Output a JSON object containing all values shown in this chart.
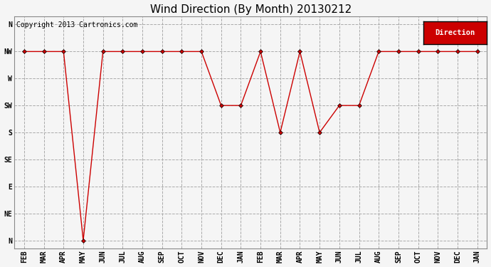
{
  "title": "Wind Direction (By Month) 20130212",
  "copyright": "Copyright 2013 Cartronics.com",
  "legend_label": "Direction",
  "legend_bg": "#cc0000",
  "legend_text_color": "#ffffff",
  "x_labels": [
    "FEB",
    "MAR",
    "APR",
    "MAY",
    "JUN",
    "JUL",
    "AUG",
    "SEP",
    "OCT",
    "NOV",
    "DEC",
    "JAN",
    "FEB",
    "MAR",
    "APR",
    "MAY",
    "JUN",
    "JUL",
    "AUG",
    "SEP",
    "OCT",
    "NOV",
    "DEC",
    "JAN"
  ],
  "y_labels": [
    "N",
    "NE",
    "E",
    "SE",
    "S",
    "SW",
    "W",
    "NW",
    "N"
  ],
  "y_ticks": [
    0,
    1,
    2,
    3,
    4,
    5,
    6,
    7,
    8
  ],
  "data_values": [
    7,
    7,
    7,
    0,
    7,
    7,
    7,
    7,
    7,
    7,
    5,
    5,
    7,
    4,
    7,
    4,
    5,
    5,
    7,
    7,
    7,
    7,
    7,
    7
  ],
  "line_color": "#cc0000",
  "marker": "D",
  "marker_size": 3,
  "bg_color": "#f5f5f5",
  "grid_color": "#aaaaaa",
  "grid_style": "--",
  "title_fontsize": 11,
  "axis_fontsize": 7,
  "copyright_fontsize": 7
}
